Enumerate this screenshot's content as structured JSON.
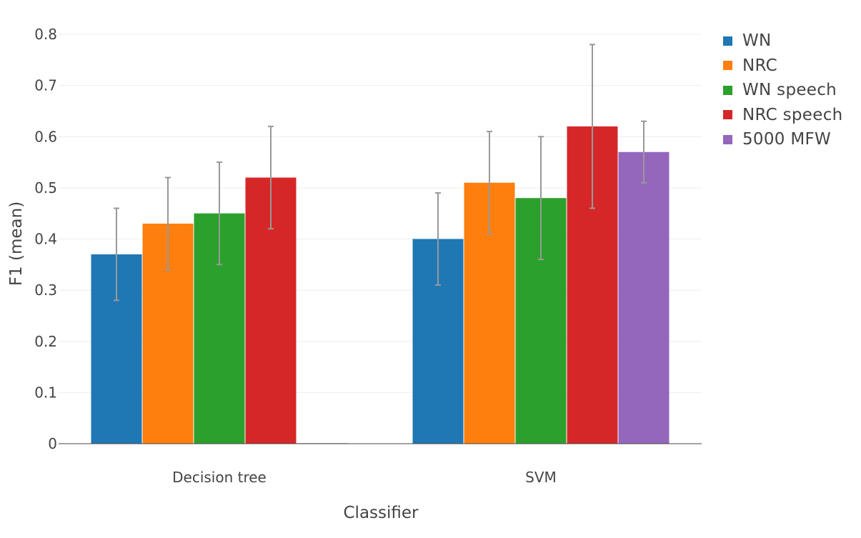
{
  "chart_data": {
    "type": "bar",
    "title": "",
    "xlabel": "Classifier",
    "ylabel": "F1 (mean)",
    "ylim": [
      0,
      0.8
    ],
    "yticks": [
      "0",
      "0.1",
      "0.2",
      "0.3",
      "0.4",
      "0.5",
      "0.6",
      "0.7",
      "0.8"
    ],
    "categories": [
      "Decision tree",
      "SVM"
    ],
    "grid": true,
    "legend_position": "top-right",
    "series": [
      {
        "name": "WN",
        "color": "#1f77b4",
        "values": [
          0.37,
          0.4
        ],
        "errors": [
          0.09,
          0.09
        ]
      },
      {
        "name": "NRC",
        "color": "#ff7f0e",
        "values": [
          0.43,
          0.51
        ],
        "errors": [
          0.09,
          0.1
        ]
      },
      {
        "name": "WN speech",
        "color": "#2ca02c",
        "values": [
          0.45,
          0.48
        ],
        "errors": [
          0.1,
          0.12
        ]
      },
      {
        "name": "NRC speech",
        "color": "#d62728",
        "values": [
          0.52,
          0.62
        ],
        "errors": [
          0.1,
          0.16
        ]
      },
      {
        "name": "5000 MFW",
        "color": "#9467bd",
        "values": [
          0,
          0.57
        ],
        "errors": [
          0,
          0.06
        ]
      }
    ]
  }
}
